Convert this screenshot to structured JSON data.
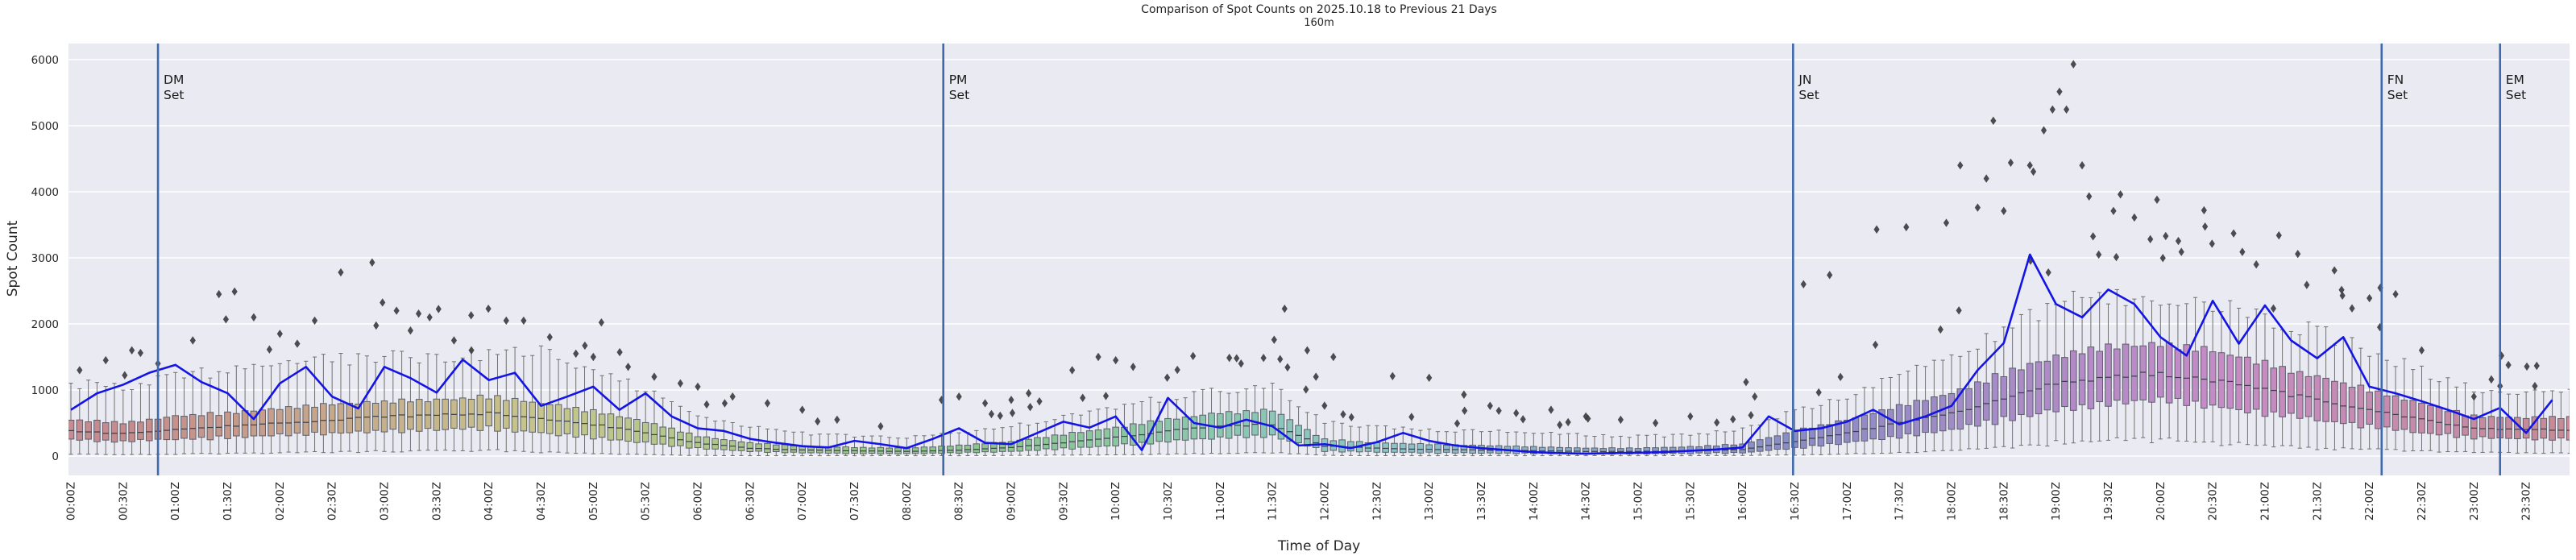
{
  "title": "Comparison of Spot Counts on 2025.10.18 to Previous 21 Days",
  "subtitle": "160m",
  "chart_data": {
    "type": "boxplot+line",
    "xlabel": "Time of Day",
    "ylabel": "Spot Count",
    "x_tick_labels": [
      "00:00Z",
      "00:30Z",
      "01:00Z",
      "01:30Z",
      "02:00Z",
      "02:30Z",
      "03:00Z",
      "03:30Z",
      "04:00Z",
      "04:30Z",
      "05:00Z",
      "05:30Z",
      "06:00Z",
      "06:30Z",
      "07:00Z",
      "07:30Z",
      "08:00Z",
      "08:30Z",
      "09:00Z",
      "09:30Z",
      "10:00Z",
      "10:30Z",
      "11:00Z",
      "11:30Z",
      "12:00Z",
      "12:30Z",
      "13:00Z",
      "13:30Z",
      "14:00Z",
      "14:30Z",
      "15:00Z",
      "15:30Z",
      "16:00Z",
      "16:30Z",
      "17:00Z",
      "17:30Z",
      "18:00Z",
      "18:30Z",
      "19:00Z",
      "19:30Z",
      "20:00Z",
      "20:30Z",
      "21:00Z",
      "21:30Z",
      "22:00Z",
      "22:30Z",
      "23:00Z",
      "23:30Z"
    ],
    "y_ticks": [
      0,
      1000,
      2000,
      3000,
      4000,
      5000,
      6000
    ],
    "ylim": [
      -290,
      6240
    ],
    "bin_minutes": 5,
    "events": [
      {
        "label_lines": [
          "DM",
          "Set"
        ],
        "minute": 50
      },
      {
        "label_lines": [
          "PM",
          "Set"
        ],
        "minute": 501
      },
      {
        "label_lines": [
          "JN",
          "Set"
        ],
        "minute": 989
      },
      {
        "label_lines": [
          "FN",
          "Set"
        ],
        "minute": 1327
      },
      {
        "label_lines": [
          "EM",
          "Set"
        ],
        "minute": 1395
      }
    ],
    "boxes_previous_21_days": {
      "anchor_minutes_step": 30,
      "median": [
        380,
        340,
        400,
        450,
        500,
        550,
        600,
        620,
        650,
        560,
        480,
        350,
        200,
        120,
        90,
        80,
        70,
        90,
        130,
        200,
        280,
        380,
        450,
        480,
        150,
        120,
        100,
        90,
        80,
        70,
        70,
        80,
        100,
        220,
        350,
        500,
        650,
        850,
        1100,
        1200,
        1250,
        1150,
        1000,
        850,
        700,
        550,
        420,
        400
      ],
      "q1": [
        250,
        220,
        260,
        280,
        320,
        350,
        380,
        400,
        420,
        350,
        280,
        200,
        120,
        70,
        50,
        40,
        35,
        50,
        70,
        110,
        160,
        220,
        280,
        300,
        80,
        60,
        50,
        45,
        40,
        35,
        35,
        40,
        50,
        120,
        200,
        300,
        400,
        550,
        700,
        800,
        850,
        750,
        650,
        550,
        450,
        350,
        280,
        260
      ],
      "q3": [
        550,
        500,
        600,
        650,
        720,
        780,
        820,
        850,
        900,
        800,
        680,
        520,
        300,
        200,
        150,
        130,
        120,
        160,
        220,
        330,
        430,
        560,
        650,
        700,
        250,
        200,
        180,
        160,
        140,
        120,
        120,
        140,
        180,
        380,
        550,
        750,
        950,
        1250,
        1500,
        1650,
        1700,
        1600,
        1400,
        1200,
        1000,
        800,
        600,
        580
      ],
      "whisker_low": [
        30,
        20,
        30,
        40,
        50,
        60,
        70,
        80,
        90,
        60,
        40,
        20,
        10,
        5,
        5,
        5,
        5,
        5,
        10,
        15,
        20,
        30,
        40,
        50,
        10,
        5,
        5,
        5,
        5,
        5,
        5,
        5,
        10,
        15,
        30,
        50,
        80,
        120,
        200,
        250,
        250,
        200,
        150,
        120,
        100,
        80,
        60,
        50
      ],
      "whisker_high": [
        1100,
        1050,
        1200,
        1300,
        1400,
        1450,
        1500,
        1500,
        1550,
        1600,
        1300,
        1000,
        600,
        450,
        350,
        300,
        280,
        350,
        450,
        600,
        750,
        900,
        1000,
        1100,
        500,
        450,
        400,
        380,
        350,
        320,
        300,
        320,
        400,
        700,
        900,
        1200,
        1500,
        1900,
        2300,
        2400,
        2400,
        2300,
        2100,
        1900,
        1600,
        1300,
        1000,
        950
      ]
    },
    "today_line": {
      "name": "2025.10.18",
      "minutes_step": 15,
      "values": [
        700,
        950,
        1080,
        1260,
        1380,
        1120,
        950,
        560,
        1100,
        1350,
        900,
        720,
        1350,
        1180,
        960,
        1460,
        1150,
        1260,
        760,
        900,
        1050,
        700,
        950,
        600,
        420,
        380,
        260,
        200,
        150,
        130,
        230,
        180,
        120,
        260,
        420,
        200,
        180,
        350,
        520,
        430,
        600,
        90,
        880,
        500,
        430,
        550,
        450,
        160,
        180,
        120,
        210,
        350,
        230,
        160,
        120,
        90,
        60,
        45,
        35,
        45,
        50,
        60,
        80,
        100,
        130,
        600,
        380,
        420,
        520,
        700,
        480,
        600,
        760,
        1300,
        1710,
        3050,
        2300,
        2100,
        2520,
        2300,
        1800,
        1520,
        2350,
        1700,
        2280,
        1750,
        1480,
        1800,
        1050,
        950,
        830,
        700,
        560,
        730,
        350,
        850
      ]
    },
    "outliers": [
      [
        5,
        1300
      ],
      [
        20,
        1450
      ],
      [
        35,
        1600
      ],
      [
        50,
        1400
      ],
      [
        70,
        1750
      ],
      [
        85,
        2450
      ],
      [
        94,
        2490
      ],
      [
        105,
        2100
      ],
      [
        120,
        1850
      ],
      [
        130,
        1700
      ],
      [
        140,
        2050
      ],
      [
        155,
        2780
      ],
      [
        173,
        2930
      ],
      [
        187,
        2200
      ],
      [
        195,
        1900
      ],
      [
        206,
        2100
      ],
      [
        220,
        1750
      ],
      [
        230,
        1600
      ],
      [
        250,
        2050
      ],
      [
        260,
        2050
      ],
      [
        275,
        1800
      ],
      [
        290,
        1550
      ],
      [
        300,
        1500
      ],
      [
        320,
        1350
      ],
      [
        335,
        1200
      ],
      [
        350,
        1100
      ],
      [
        360,
        1050
      ],
      [
        380,
        900
      ],
      [
        400,
        800
      ],
      [
        420,
        700
      ],
      [
        440,
        550
      ],
      [
        465,
        450
      ],
      [
        500,
        850
      ],
      [
        510,
        900
      ],
      [
        525,
        800
      ],
      [
        540,
        850
      ],
      [
        550,
        950
      ],
      [
        575,
        1300
      ],
      [
        590,
        1500
      ],
      [
        600,
        1450
      ],
      [
        610,
        1350
      ],
      [
        672,
        1400
      ],
      [
        691,
        1760
      ],
      [
        697,
        2230
      ],
      [
        710,
        1600
      ],
      [
        715,
        1200
      ],
      [
        725,
        1500
      ],
      [
        759,
        1210
      ],
      [
        780,
        1185
      ],
      [
        800,
        930
      ],
      [
        815,
        760
      ],
      [
        830,
        650
      ],
      [
        850,
        700
      ],
      [
        870,
        600
      ],
      [
        890,
        550
      ],
      [
        910,
        500
      ],
      [
        930,
        600
      ],
      [
        962,
        1120
      ],
      [
        967,
        900
      ],
      [
        995,
        2600
      ],
      [
        1010,
        2740
      ],
      [
        1037,
        3430
      ],
      [
        1054,
        3465
      ],
      [
        1077,
        3530
      ],
      [
        1085,
        4400
      ],
      [
        1095,
        3760
      ],
      [
        1100,
        4200
      ],
      [
        1104,
        5075
      ],
      [
        1110,
        3710
      ],
      [
        1114,
        4440
      ],
      [
        1125,
        4400
      ],
      [
        1127,
        4305
      ],
      [
        1133,
        4930
      ],
      [
        1138,
        5245
      ],
      [
        1142,
        5515
      ],
      [
        1146,
        5245
      ],
      [
        1150,
        5930
      ],
      [
        1155,
        4400
      ],
      [
        1159,
        3930
      ],
      [
        1173,
        3710
      ],
      [
        1177,
        3960
      ],
      [
        1185,
        3610
      ],
      [
        1198,
        3880
      ],
      [
        1203,
        3330
      ],
      [
        1212,
        3090
      ],
      [
        1225,
        3720
      ],
      [
        1242,
        3370
      ],
      [
        1247,
        3090
      ],
      [
        1255,
        2900
      ],
      [
        1268,
        3340
      ],
      [
        1284,
        2590
      ],
      [
        1304,
        2515
      ],
      [
        1310,
        2235
      ],
      [
        1320,
        2390
      ],
      [
        1326,
        1950
      ],
      [
        1335,
        2450
      ],
      [
        1350,
        1600
      ],
      [
        1380,
        900
      ],
      [
        1390,
        1160
      ],
      [
        1395,
        1060
      ],
      [
        1415,
        1060
      ]
    ],
    "colors": {
      "plot_background": "#eaeaf2",
      "grid": "#ffffff",
      "today_line": "#1414e6",
      "event_line": "#3f69ad",
      "flier": "#3e3e42",
      "box_edge": "#5a5f6b",
      "median_line": "#3a3f4a",
      "whisker": "#707070",
      "text": "#262626"
    }
  }
}
